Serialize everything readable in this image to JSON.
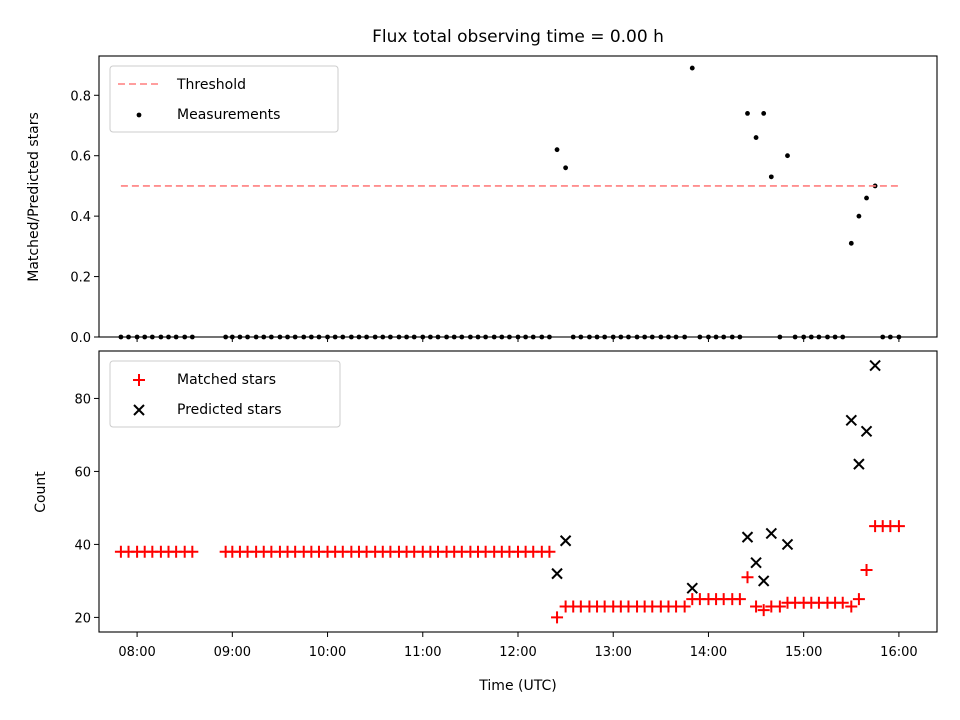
{
  "chart_data": [
    {
      "type": "scatter",
      "title": "Flux total observing time = 0.00 h",
      "xlabel": "",
      "ylabel": "Matched/Predicted stars",
      "xlim": [
        7.6,
        16.4
      ],
      "ylim": [
        0.0,
        0.93
      ],
      "yticks": [
        0.0,
        0.2,
        0.4,
        0.6,
        0.8
      ],
      "ytick_labels": [
        "0.0",
        "0.2",
        "0.4",
        "0.6",
        "0.8"
      ],
      "legend": [
        "Threshold",
        "Measurements"
      ],
      "legend_position": "top-left",
      "threshold": {
        "name": "Threshold",
        "value": 0.5,
        "x_range": [
          7.83,
          16.0
        ],
        "color": "#ff7f7f"
      },
      "series": [
        {
          "name": "Measurements",
          "color": "#000000",
          "x": [
            7.83,
            7.91,
            8.0,
            8.08,
            8.16,
            8.25,
            8.33,
            8.41,
            8.5,
            8.58,
            8.93,
            9.0,
            9.08,
            9.16,
            9.25,
            9.33,
            9.41,
            9.5,
            9.58,
            9.66,
            9.75,
            9.83,
            9.91,
            10.0,
            10.08,
            10.16,
            10.25,
            10.33,
            10.41,
            10.5,
            10.58,
            10.66,
            10.75,
            10.83,
            10.91,
            11.0,
            11.08,
            11.16,
            11.25,
            11.33,
            11.41,
            11.5,
            11.58,
            11.66,
            11.75,
            11.83,
            11.91,
            12.0,
            12.08,
            12.16,
            12.25,
            12.33,
            12.41,
            12.5,
            12.58,
            12.66,
            12.75,
            12.83,
            12.91,
            13.0,
            13.08,
            13.16,
            13.25,
            13.33,
            13.41,
            13.5,
            13.58,
            13.66,
            13.75,
            13.83,
            13.91,
            14.0,
            14.08,
            14.16,
            14.25,
            14.33,
            14.41,
            14.5,
            14.58,
            14.66,
            14.75,
            14.83,
            14.91,
            15.0,
            15.08,
            15.16,
            15.25,
            15.33,
            15.41,
            15.5,
            15.58,
            15.66,
            15.75,
            15.83,
            15.91,
            16.0
          ],
          "y": [
            0,
            0,
            0,
            0,
            0,
            0,
            0,
            0,
            0,
            0,
            0,
            0,
            0,
            0,
            0,
            0,
            0,
            0,
            0,
            0,
            0,
            0,
            0,
            0,
            0,
            0,
            0,
            0,
            0,
            0,
            0,
            0,
            0,
            0,
            0,
            0,
            0,
            0,
            0,
            0,
            0,
            0,
            0,
            0,
            0,
            0,
            0,
            0,
            0,
            0,
            0,
            0,
            0.62,
            0.56,
            0,
            0,
            0,
            0,
            0,
            0,
            0,
            0,
            0,
            0,
            0,
            0,
            0,
            0,
            0,
            0.89,
            0,
            0,
            0,
            0,
            0,
            0,
            0.74,
            0.66,
            0.74,
            0.53,
            0,
            0.6,
            0,
            0,
            0,
            0,
            0,
            0,
            0,
            0.31,
            0.4,
            0.46,
            0.5,
            0,
            0,
            0
          ]
        }
      ]
    },
    {
      "type": "scatter",
      "title": "",
      "xlabel": "Time (UTC)",
      "ylabel": "Count",
      "xlim": [
        7.6,
        16.4
      ],
      "ylim": [
        16.0,
        93.0
      ],
      "xticks": [
        8,
        9,
        10,
        11,
        12,
        13,
        14,
        15,
        16
      ],
      "xtick_labels": [
        "08:00",
        "09:00",
        "10:00",
        "11:00",
        "12:00",
        "13:00",
        "14:00",
        "15:00",
        "16:00"
      ],
      "yticks": [
        20,
        40,
        60,
        80
      ],
      "ytick_labels": [
        "20",
        "40",
        "60",
        "80"
      ],
      "legend": [
        "Matched stars",
        "Predicted stars"
      ],
      "legend_position": "top-left",
      "series": [
        {
          "name": "Matched stars",
          "marker": "plus",
          "color": "#ff0000",
          "x": [
            7.83,
            7.91,
            8.0,
            8.08,
            8.16,
            8.25,
            8.33,
            8.41,
            8.5,
            8.58,
            8.93,
            9.0,
            9.08,
            9.16,
            9.25,
            9.33,
            9.41,
            9.5,
            9.58,
            9.66,
            9.75,
            9.83,
            9.91,
            10.0,
            10.08,
            10.16,
            10.25,
            10.33,
            10.41,
            10.5,
            10.58,
            10.66,
            10.75,
            10.83,
            10.91,
            11.0,
            11.08,
            11.16,
            11.25,
            11.33,
            11.41,
            11.5,
            11.58,
            11.66,
            11.75,
            11.83,
            11.91,
            12.0,
            12.08,
            12.16,
            12.25,
            12.33,
            12.41,
            12.5,
            12.58,
            12.66,
            12.75,
            12.83,
            12.91,
            13.0,
            13.08,
            13.16,
            13.25,
            13.33,
            13.41,
            13.5,
            13.58,
            13.66,
            13.75,
            13.83,
            13.91,
            14.0,
            14.08,
            14.16,
            14.25,
            14.33,
            14.41,
            14.5,
            14.58,
            14.66,
            14.75,
            14.83,
            14.91,
            15.0,
            15.08,
            15.16,
            15.25,
            15.33,
            15.41,
            15.5,
            15.58,
            15.66,
            15.75,
            15.83,
            15.91,
            16.0
          ],
          "y": [
            38,
            38,
            38,
            38,
            38,
            38,
            38,
            38,
            38,
            38,
            38,
            38,
            38,
            38,
            38,
            38,
            38,
            38,
            38,
            38,
            38,
            38,
            38,
            38,
            38,
            38,
            38,
            38,
            38,
            38,
            38,
            38,
            38,
            38,
            38,
            38,
            38,
            38,
            38,
            38,
            38,
            38,
            38,
            38,
            38,
            38,
            38,
            38,
            38,
            38,
            38,
            38,
            20,
            23,
            23,
            23,
            23,
            23,
            23,
            23,
            23,
            23,
            23,
            23,
            23,
            23,
            23,
            23,
            23,
            25,
            25,
            25,
            25,
            25,
            25,
            25,
            31,
            23,
            22,
            23,
            23,
            24,
            24,
            24,
            24,
            24,
            24,
            24,
            24,
            23,
            25,
            33,
            45,
            45,
            45,
            45
          ]
        },
        {
          "name": "Predicted stars",
          "marker": "x",
          "color": "#000000",
          "x": [
            12.41,
            12.5,
            13.83,
            14.41,
            14.5,
            14.58,
            14.66,
            14.83,
            15.5,
            15.58,
            15.66,
            15.75
          ],
          "y": [
            32,
            41,
            28,
            42,
            35,
            30,
            43,
            40,
            74,
            62,
            71,
            89
          ]
        }
      ]
    }
  ]
}
